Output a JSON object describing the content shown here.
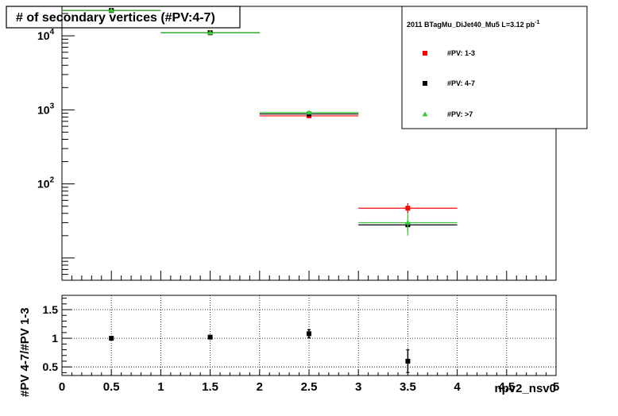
{
  "chart_data": [
    {
      "type": "scatter",
      "title": "# of secondary vertices (#PV:4-7)",
      "legend_title": "2011 BTagMu_DiJet40_Mu5 L=3.12 pb",
      "legend_title_sup": "-1",
      "legend_position": "top-right",
      "yscale": "log",
      "ylim": [
        5,
        25000
      ],
      "xlim": [
        0,
        5
      ],
      "ytick_labels": [
        {
          "value": 10000,
          "base": "10",
          "exp": "4"
        },
        {
          "value": 1000,
          "base": "10",
          "exp": "3"
        },
        {
          "value": 100,
          "base": "10",
          "exp": "2"
        }
      ],
      "series": [
        {
          "name": "#PV: 1-3",
          "color": "#ff0000",
          "marker": "square",
          "points": [
            {
              "x": 0.5,
              "xlo": 0,
              "xhi": 1,
              "y": 22000,
              "ylo": 22000,
              "yhi": 22000
            },
            {
              "x": 1.5,
              "xlo": 1,
              "xhi": 2,
              "y": 11000,
              "ylo": 11000,
              "yhi": 11000
            },
            {
              "x": 2.5,
              "xlo": 2,
              "xhi": 3,
              "y": 830,
              "ylo": 810,
              "yhi": 850
            },
            {
              "x": 3.5,
              "xlo": 3,
              "xhi": 4,
              "y": 47,
              "ylo": 40,
              "yhi": 55
            }
          ]
        },
        {
          "name": "#PV: 4-7",
          "color": "#000000",
          "marker": "square",
          "points": [
            {
              "x": 0.5,
              "xlo": 0,
              "xhi": 1,
              "y": 22000,
              "ylo": 22000,
              "yhi": 22000
            },
            {
              "x": 1.5,
              "xlo": 1,
              "xhi": 2,
              "y": 11000,
              "ylo": 11000,
              "yhi": 11000
            },
            {
              "x": 2.5,
              "xlo": 2,
              "xhi": 3,
              "y": 880,
              "ylo": 860,
              "yhi": 900
            },
            {
              "x": 3.5,
              "xlo": 3,
              "xhi": 4,
              "y": 28,
              "ylo": 23,
              "yhi": 33
            }
          ]
        },
        {
          "name": "#PV: >7",
          "color": "#33cc33",
          "marker": "triangle",
          "points": [
            {
              "x": 0.5,
              "xlo": 0,
              "xhi": 1,
              "y": 22000,
              "ylo": 22000,
              "yhi": 22000
            },
            {
              "x": 1.5,
              "xlo": 1,
              "xhi": 2,
              "y": 11000,
              "ylo": 11000,
              "yhi": 11000
            },
            {
              "x": 2.5,
              "xlo": 2,
              "xhi": 3,
              "y": 920,
              "ylo": 890,
              "yhi": 950
            },
            {
              "x": 3.5,
              "xlo": 3,
              "xhi": 4,
              "y": 30,
              "ylo": 20,
              "yhi": 40
            }
          ]
        }
      ]
    },
    {
      "type": "scatter",
      "xlabel": "npv2_nsv0",
      "ylabel": "#PV 4-7/#PV 1-3",
      "xlim": [
        0,
        5
      ],
      "ylim": [
        0.35,
        1.75
      ],
      "grid": true,
      "xtick_labels": [
        "0",
        "0.5",
        "1",
        "1.5",
        "2",
        "2.5",
        "3",
        "3.5",
        "4",
        "4.5",
        "5"
      ],
      "ytick_labels": [
        "1.5",
        "1",
        "0.5"
      ],
      "series": [
        {
          "color": "#000000",
          "marker": "square",
          "points": [
            {
              "x": 0.5,
              "y": 1.0,
              "ylo": 0.99,
              "yhi": 1.01
            },
            {
              "x": 1.5,
              "y": 1.02,
              "ylo": 1.01,
              "yhi": 1.03
            },
            {
              "x": 2.5,
              "y": 1.08,
              "ylo": 1.01,
              "yhi": 1.15
            },
            {
              "x": 3.5,
              "y": 0.6,
              "ylo": 0.4,
              "yhi": 0.8
            }
          ]
        }
      ]
    }
  ]
}
